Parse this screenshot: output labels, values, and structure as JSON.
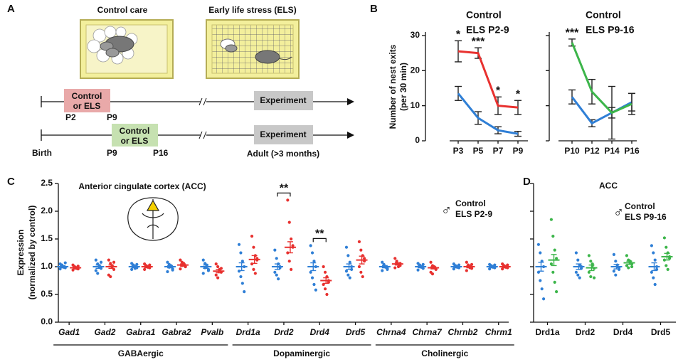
{
  "panel_labels": [
    "A",
    "B",
    "C",
    "D"
  ],
  "diagram": {
    "cage_titles": [
      "Control care",
      "Early life stress (ELS)"
    ],
    "timeline_1": {
      "box": [
        "Control",
        "or ELS"
      ],
      "start": "P2",
      "end": "P9",
      "experiment": "Experiment"
    },
    "timeline_2": {
      "box": [
        "Control",
        "or ELS"
      ],
      "origin": "Birth",
      "start": "P9",
      "end": "P16",
      "experiment": "Experiment",
      "adult": "Adult (>3 months)"
    }
  },
  "chart_data": [
    {
      "type": "line",
      "ylabel": [
        "Number of nest exits",
        "(per 30 min)"
      ],
      "categories": [
        "P3",
        "P5",
        "P7",
        "P9"
      ],
      "series": [
        {
          "name": "Control",
          "color": "#2f7fd6",
          "values": [
            13.5,
            6.5,
            3,
            2
          ],
          "errors": [
            2,
            1.8,
            1,
            0.7
          ]
        },
        {
          "name": "ELS P2-9",
          "color": "#e8312f",
          "values": [
            25.5,
            25,
            10,
            9.5
          ],
          "errors": [
            3,
            1.5,
            2.5,
            2
          ]
        }
      ],
      "significance": [
        "*",
        "***",
        "*",
        "*"
      ],
      "ylim": [
        0,
        31
      ],
      "yticks": [
        0,
        10,
        20,
        30
      ]
    },
    {
      "type": "line",
      "categories": [
        "P10",
        "P12",
        "P14",
        "P16"
      ],
      "series": [
        {
          "name": "Control",
          "color": "#2f7fd6",
          "values": [
            12.5,
            5,
            8,
            11
          ],
          "errors": [
            2,
            1,
            1.5,
            2.5
          ]
        },
        {
          "name": "ELS P9-16",
          "color": "#3cb54a",
          "values": [
            28,
            14,
            8,
            10.5
          ],
          "errors": [
            1,
            3.5,
            7.5,
            3
          ]
        }
      ],
      "significance": [
        "***",
        null,
        null,
        null
      ],
      "ylim": [
        0,
        31
      ],
      "yticks": [
        0,
        10,
        20,
        30
      ],
      "tick_labels": false
    },
    {
      "type": "dot",
      "title": "Anterior cingulate cortex (ACC)",
      "ylabel": [
        "Expression",
        "(normalized by control)"
      ],
      "sex_symbol": "♂",
      "categories": [
        "Gad1",
        "Gad2",
        "Gabra1",
        "Gabra2",
        "Pvalb",
        "Drd1a",
        "Drd2",
        "Drd4",
        "Drd5",
        "Chrna4",
        "Chrna7",
        "Chrnb2",
        "Chrm1"
      ],
      "groups": [
        {
          "label": "GABAergic",
          "span": [
            0,
            4
          ]
        },
        {
          "label": "Dopaminergic",
          "span": [
            5,
            8
          ]
        },
        {
          "label": "Cholinergic",
          "span": [
            9,
            12
          ]
        }
      ],
      "series": [
        {
          "name": "Control",
          "color": "#2f7fd6",
          "values": [
            1.0,
            1.0,
            1.0,
            1.0,
            1.0,
            1.0,
            1.0,
            1.0,
            1.0,
            1.0,
            1.0,
            1.0,
            1.0
          ],
          "errors": [
            0.02,
            0.03,
            0.02,
            0.02,
            0.03,
            0.07,
            0.05,
            0.07,
            0.05,
            0.02,
            0.02,
            0.02,
            0.02
          ],
          "points": [
            [
              1.05,
              1.02,
              1.0,
              0.98,
              0.96,
              1.03,
              0.99,
              1.07
            ],
            [
              1.12,
              1.05,
              1.0,
              0.97,
              0.93,
              0.88,
              1.02,
              1.08
            ],
            [
              1.06,
              1.03,
              1.0,
              0.98,
              0.95,
              1.01,
              0.97,
              1.04
            ],
            [
              1.08,
              1.04,
              1.0,
              0.96,
              0.91,
              0.99,
              1.02,
              0.94
            ],
            [
              1.12,
              1.06,
              1.0,
              0.95,
              0.88,
              0.98,
              1.03,
              0.93
            ],
            [
              1.4,
              1.25,
              1.1,
              1.0,
              0.92,
              0.82,
              0.7,
              0.55
            ],
            [
              1.3,
              1.15,
              1.05,
              0.98,
              0.9,
              0.85,
              0.78,
              1.0
            ],
            [
              1.38,
              1.25,
              1.1,
              1.0,
              0.9,
              0.8,
              0.68,
              0.58
            ],
            [
              1.35,
              1.2,
              1.08,
              1.0,
              0.92,
              0.85,
              0.8,
              0.95
            ],
            [
              1.08,
              1.04,
              1.0,
              0.97,
              0.93,
              1.02,
              0.99,
              0.95
            ],
            [
              1.06,
              1.03,
              1.0,
              0.97,
              0.94,
              1.01,
              0.99,
              1.04
            ],
            [
              1.05,
              1.02,
              1.0,
              0.98,
              0.96,
              1.01,
              0.99,
              1.03
            ],
            [
              1.04,
              1.02,
              1.0,
              0.98,
              0.96,
              1.01,
              0.99,
              1.03
            ]
          ]
        },
        {
          "name": "ELS P2-9",
          "color": "#e8312f",
          "values": [
            0.98,
            1.0,
            1.0,
            1.03,
            0.92,
            1.13,
            1.35,
            0.75,
            1.12,
            1.05,
            0.98,
            1.0,
            1.0
          ],
          "errors": [
            0.02,
            0.03,
            0.02,
            0.02,
            0.03,
            0.07,
            0.1,
            0.05,
            0.07,
            0.02,
            0.02,
            0.02,
            0.02
          ],
          "points": [
            [
              1.03,
              1.0,
              0.98,
              0.96,
              0.94,
              0.99,
              0.97,
              1.01
            ],
            [
              1.12,
              1.06,
              1.0,
              0.95,
              0.85,
              0.82,
              1.02,
              1.08
            ],
            [
              1.05,
              1.02,
              1.0,
              0.98,
              0.95,
              1.01,
              0.99,
              1.03
            ],
            [
              1.12,
              1.08,
              1.04,
              1.0,
              0.96,
              1.02,
              1.06,
              1.0
            ],
            [
              1.05,
              1.0,
              0.95,
              0.9,
              0.85,
              0.8,
              0.93,
              0.97
            ],
            [
              1.55,
              1.35,
              1.2,
              1.12,
              1.05,
              0.95,
              0.88,
              1.15
            ],
            [
              2.2,
              1.8,
              1.5,
              1.38,
              1.25,
              1.1,
              0.95,
              1.35
            ],
            [
              1.0,
              0.9,
              0.82,
              0.75,
              0.68,
              0.6,
              0.5,
              0.72
            ],
            [
              1.45,
              1.3,
              1.2,
              1.1,
              1.0,
              0.9,
              0.82,
              1.15
            ],
            [
              1.15,
              1.1,
              1.05,
              1.02,
              0.98,
              1.08,
              1.0,
              1.06
            ],
            [
              1.08,
              1.02,
              0.98,
              0.95,
              0.9,
              0.87,
              1.0,
              0.96
            ],
            [
              1.08,
              1.03,
              1.0,
              0.97,
              0.93,
              1.01,
              0.98,
              1.04
            ],
            [
              1.05,
              1.02,
              1.0,
              0.98,
              0.96,
              1.01,
              0.99,
              1.03
            ]
          ]
        }
      ],
      "significance": [
        null,
        null,
        null,
        null,
        null,
        null,
        "**",
        "**",
        null,
        null,
        null,
        null,
        null
      ],
      "ylim": [
        0,
        2.5
      ],
      "yticks": [
        {
          "value": 0,
          "label": "0.0"
        },
        0.5,
        {
          "value": 1,
          "label": "1.0"
        },
        1.5,
        {
          "value": 2,
          "label": "2.0"
        },
        2.5
      ]
    },
    {
      "type": "dot",
      "title": "ACC",
      "sex_symbol": "♂",
      "categories": [
        "Drd1a",
        "Drd2",
        "Drd4",
        "Drd5"
      ],
      "series": [
        {
          "name": "Control",
          "color": "#2f7fd6",
          "values": [
            1.0,
            1.0,
            1.0,
            1.0
          ],
          "errors": [
            0.08,
            0.05,
            0.04,
            0.07
          ],
          "points": [
            [
              1.4,
              1.25,
              1.1,
              1.0,
              0.9,
              0.75,
              0.6,
              0.42
            ],
            [
              1.25,
              1.12,
              1.03,
              0.97,
              0.9,
              0.85,
              0.8,
              1.0
            ],
            [
              1.22,
              1.1,
              1.03,
              0.98,
              0.92,
              0.85,
              1.0,
              0.95
            ],
            [
              1.38,
              1.25,
              1.12,
              1.0,
              0.9,
              0.8,
              0.68,
              0.95
            ]
          ]
        },
        {
          "name": "ELS P9-16",
          "color": "#3cb54a",
          "values": [
            1.12,
            0.98,
            1.07,
            1.18
          ],
          "errors": [
            0.1,
            0.05,
            0.03,
            0.06
          ],
          "points": [
            [
              1.85,
              1.55,
              1.3,
              1.15,
              1.05,
              0.9,
              0.72,
              0.55
            ],
            [
              1.2,
              1.1,
              1.02,
              0.97,
              0.9,
              0.82,
              1.05,
              0.8
            ],
            [
              1.2,
              1.12,
              1.08,
              1.05,
              1.02,
              0.98,
              1.1,
              1.0
            ],
            [
              1.52,
              1.35,
              1.25,
              1.18,
              1.12,
              1.02,
              0.95,
              1.15
            ]
          ]
        }
      ],
      "ylim": [
        0,
        2.5
      ],
      "yticks": [
        0,
        0.5,
        1,
        1.5,
        2,
        2.5
      ],
      "tick_labels": false
    }
  ]
}
